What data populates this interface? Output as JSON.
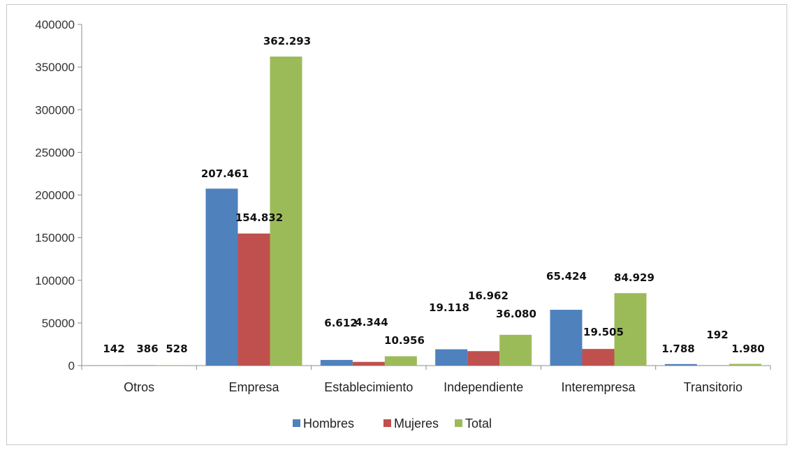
{
  "chart_data": {
    "type": "bar",
    "categories": [
      "Otros",
      "Empresa",
      "Establecimiento",
      "Independiente",
      "Interempresa",
      "Transitorio"
    ],
    "series": [
      {
        "name": "Hombres",
        "color": "#4F81BD",
        "values": [
          142,
          207461,
          6612,
          19118,
          65424,
          1788
        ],
        "labels": [
          "142",
          "207.461",
          "6.612",
          "19.118",
          "65.424",
          "1.788"
        ]
      },
      {
        "name": "Mujeres",
        "color": "#C0504D",
        "values": [
          386,
          154832,
          4344,
          16962,
          19505,
          192
        ],
        "labels": [
          "386",
          "154.832",
          "4.344",
          "16.962",
          "19.505",
          "192"
        ]
      },
      {
        "name": "Total",
        "color": "#9BBB59",
        "values": [
          528,
          362293,
          10956,
          36080,
          84929,
          1980
        ],
        "labels": [
          "528",
          "362.293",
          "10.956",
          "36.080",
          "84.929",
          "1.980"
        ]
      }
    ],
    "ylim": [
      0,
      400000
    ],
    "yticks": [
      "0",
      "50000",
      "100000",
      "150000",
      "200000",
      "250000",
      "300000",
      "350000",
      "400000"
    ],
    "grid": false,
    "legend": "bottom"
  }
}
